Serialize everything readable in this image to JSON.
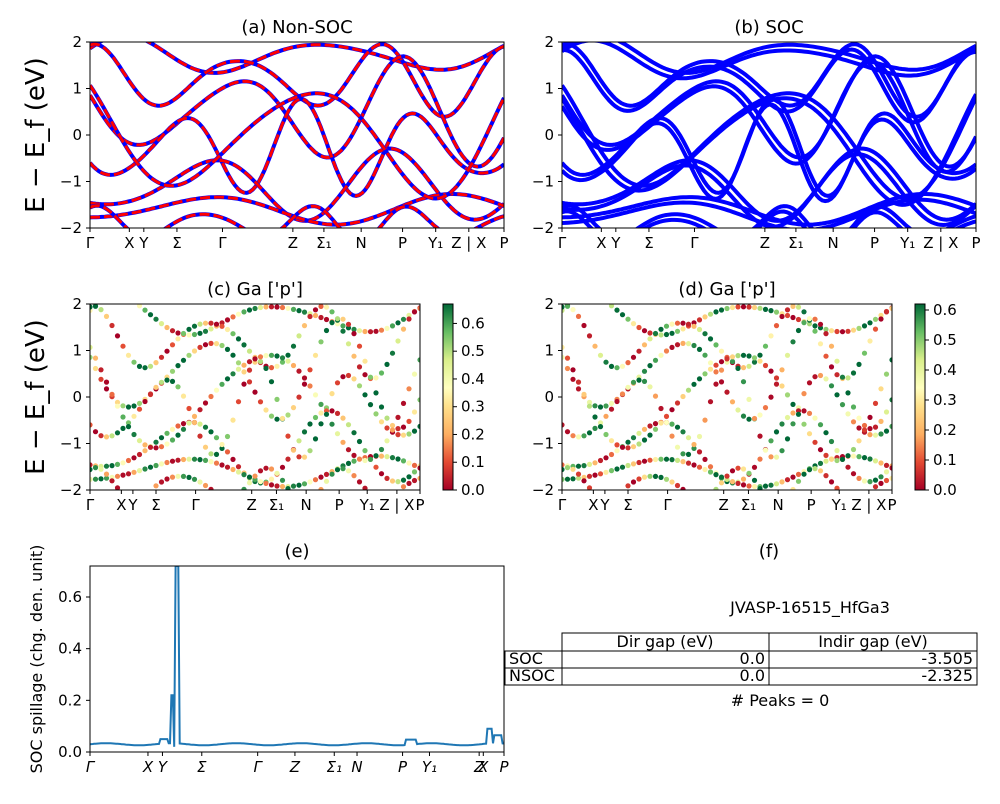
{
  "chart_data": [
    {
      "id": "a",
      "type": "line",
      "title": "(a) Non-SOC",
      "ylabel": "E − E_f (eV)",
      "ylim": [
        -2,
        2
      ],
      "yticks": [
        "2",
        "1",
        "0",
        "−1",
        "−2"
      ],
      "xtick_labels": [
        "Γ",
        "X",
        "Y",
        "Σ",
        "Γ",
        "Z",
        "Σ₁",
        "N",
        "P",
        "Y₁",
        "Z | X",
        "P"
      ],
      "series": [
        {
          "style": "spin-up",
          "color": "#0000ff"
        },
        {
          "style": "spin-down",
          "color": "#ff0000"
        }
      ]
    },
    {
      "id": "b",
      "type": "line",
      "title": "(b) SOC",
      "ylim": [
        -2,
        2
      ],
      "yticks": [
        "2",
        "1",
        "0",
        "−1",
        "−2"
      ],
      "xtick_labels": [
        "Γ",
        "X",
        "Y",
        "Σ",
        "Γ",
        "Z",
        "Σ₁",
        "N",
        "P",
        "Y₁",
        "Z | X",
        "P"
      ],
      "series": [
        {
          "color": "#0000ff"
        }
      ]
    },
    {
      "id": "c",
      "type": "scatter",
      "title": "(c)  Ga ['p']",
      "ylabel": "E − E_f (eV)",
      "ylim": [
        -2,
        2
      ],
      "yticks": [
        "2",
        "1",
        "0",
        "−1",
        "−2"
      ],
      "xtick_labels": [
        "Γ",
        "X",
        "Y",
        "Σ",
        "Γ",
        "Z",
        "Σ₁",
        "N",
        "P",
        "Y₁",
        "Z | X",
        "P"
      ],
      "colorbar": {
        "min": 0.0,
        "max": 0.67,
        "ticks": [
          "0.0",
          "0.1",
          "0.2",
          "0.3",
          "0.4",
          "0.5",
          "0.6"
        ],
        "colormap": "RdYlGn"
      }
    },
    {
      "id": "d",
      "type": "scatter",
      "title": "(d) Ga ['p']",
      "ylim": [
        -2,
        2
      ],
      "yticks": [
        "2",
        "1",
        "0",
        "−1",
        "−2"
      ],
      "xtick_labels": [
        "Γ",
        "X",
        "Y",
        "Σ",
        "Γ",
        "Z",
        "Σ₁",
        "N",
        "P",
        "Y₁",
        "Z | X",
        "P"
      ],
      "colorbar": {
        "min": 0.0,
        "max": 0.62,
        "ticks": [
          "0.0",
          "0.1",
          "0.2",
          "0.3",
          "0.4",
          "0.5",
          "0.6"
        ],
        "colormap": "RdYlGn"
      }
    },
    {
      "id": "e",
      "type": "line",
      "title": "(e)",
      "ylabel": "SOC spillage (chg. den. unit)",
      "ylim": [
        0,
        0.72
      ],
      "yticks": [
        "0.0",
        "0.2",
        "0.4",
        "0.6"
      ],
      "xtick_labels": [
        "Γ",
        "X",
        "Y",
        "Σ",
        "Γ",
        "Z",
        "Σ₁",
        "N",
        "P",
        "Y₁",
        "Z",
        "X",
        "P"
      ],
      "series": [
        {
          "color": "#1f77b4",
          "peak": 0.72,
          "baseline": 0.03
        }
      ]
    },
    {
      "id": "f",
      "type": "table",
      "title": "(f)",
      "material": "JVASP-16515_HfGa3",
      "columns": [
        "Dir gap (eV)",
        "Indir gap (eV)"
      ],
      "rows": [
        {
          "label": "SOC",
          "values": [
            "0.0",
            "-3.505"
          ]
        },
        {
          "label": "NSOC",
          "values": [
            "0.0",
            "-2.325"
          ]
        }
      ],
      "footer": "# Peaks = 0"
    }
  ]
}
